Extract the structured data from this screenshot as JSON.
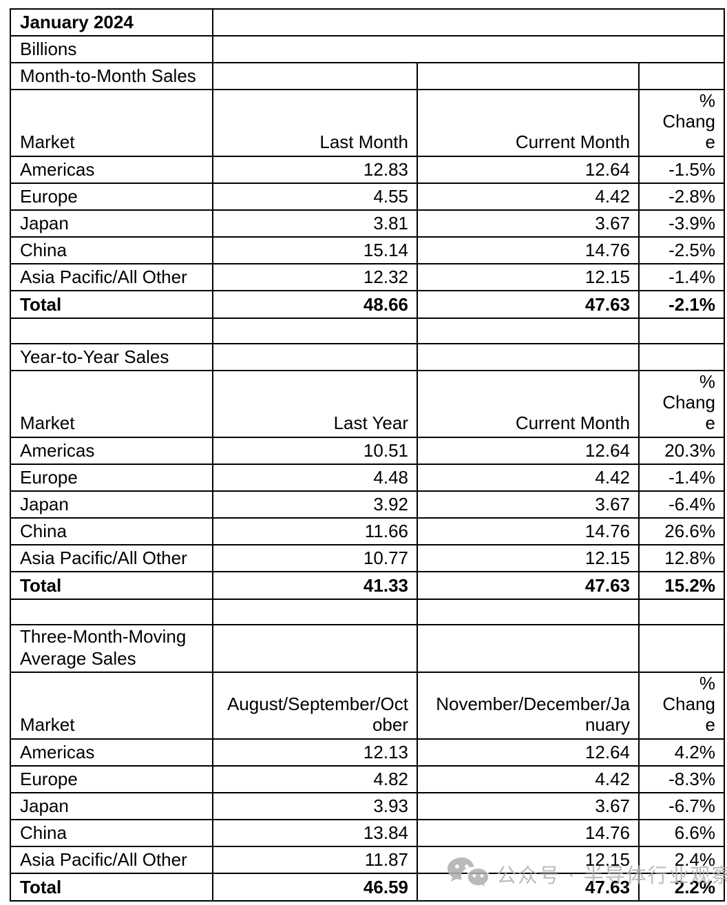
{
  "doc": {
    "title": "January 2024",
    "subtitle": "Billions"
  },
  "sections": [
    {
      "title": "Month-to-Month Sales",
      "headers": [
        "Market",
        "Last Month",
        "Current Month",
        "%\nChang\ne"
      ],
      "rows": [
        [
          "Americas",
          "12.83",
          "12.64",
          "-1.5%"
        ],
        [
          "Europe",
          "4.55",
          "4.42",
          "-2.8%"
        ],
        [
          "Japan",
          "3.81",
          "3.67",
          "-3.9%"
        ],
        [
          "China",
          "15.14",
          "14.76",
          "-2.5%"
        ],
        [
          "Asia Pacific/All Other",
          "12.32",
          "12.15",
          "-1.4%"
        ]
      ],
      "total": [
        "Total",
        "48.66",
        "47.63",
        "-2.1%"
      ]
    },
    {
      "title": "Year-to-Year Sales",
      "headers": [
        "Market",
        "Last Year",
        "Current Month",
        "%\nChang\ne"
      ],
      "rows": [
        [
          "Americas",
          "10.51",
          "12.64",
          "20.3%"
        ],
        [
          "Europe",
          "4.48",
          "4.42",
          "-1.4%"
        ],
        [
          "Japan",
          "3.92",
          "3.67",
          "-6.4%"
        ],
        [
          "China",
          "11.66",
          "14.76",
          "26.6%"
        ],
        [
          "Asia Pacific/All Other",
          "10.77",
          "12.15",
          "12.8%"
        ]
      ],
      "total": [
        "Total",
        "41.33",
        "47.63",
        "15.2%"
      ]
    },
    {
      "title": "Three-Month-Moving\nAverage Sales",
      "headers": [
        "Market",
        "August/September/Oct\nober",
        "November/December/Ja\nnuary",
        "%\nChang\ne"
      ],
      "rows": [
        [
          "Americas",
          "12.13",
          "12.64",
          "4.2%"
        ],
        [
          "Europe",
          "4.82",
          "4.42",
          "-8.3%"
        ],
        [
          "Japan",
          "3.93",
          "3.67",
          "-6.7%"
        ],
        [
          "China",
          "13.84",
          "14.76",
          "6.6%"
        ],
        [
          "Asia Pacific/All Other",
          "11.87",
          "12.15",
          "2.4%"
        ]
      ],
      "total": [
        "Total",
        "46.59",
        "47.63",
        "2.2%"
      ]
    }
  ],
  "watermark": {
    "icon": "wechat-icon",
    "text": "公众号 · 半导体行业观察",
    "color": "#b0b0b0"
  }
}
